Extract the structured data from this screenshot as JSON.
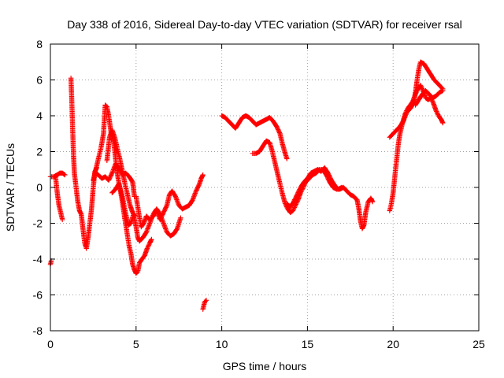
{
  "chart_data": {
    "type": "scatter",
    "title": "Day 338 of 2016, Sidereal Day-to-day VTEC variation (SDTVAR) for receiver rsal",
    "xlabel": "GPS time / hours",
    "ylabel": "SDTVAR / TECUs",
    "xlim": [
      0,
      25
    ],
    "ylim": [
      -8,
      8
    ],
    "x_ticks": [
      0,
      5,
      10,
      15,
      20,
      25
    ],
    "y_ticks": [
      -8,
      -6,
      -4,
      -2,
      0,
      2,
      4,
      6,
      8
    ],
    "x_tick_labels": [
      "0",
      "5",
      "10",
      "15",
      "20",
      "25"
    ],
    "y_tick_labels": [
      "-8",
      "-6",
      "-4",
      "-2",
      "0",
      "2",
      "4",
      "6",
      "8"
    ],
    "grid": true,
    "marker": "+",
    "series": [
      {
        "name": "SDTVAR",
        "color": "#ff0000",
        "tracks": [
          [
            [
              0.0,
              -4.3
            ],
            [
              0.05,
              -4.1
            ]
          ],
          [
            [
              0.0,
              0.6
            ],
            [
              0.2,
              0.6
            ],
            [
              0.4,
              0.7
            ],
            [
              0.55,
              0.8
            ],
            [
              0.7,
              0.8
            ],
            [
              0.85,
              0.7
            ]
          ],
          [
            [
              0.3,
              0.6
            ],
            [
              0.4,
              -0.3
            ],
            [
              0.5,
              -1.0
            ],
            [
              0.6,
              -1.4
            ],
            [
              0.7,
              -1.8
            ]
          ],
          [
            [
              1.2,
              6.1
            ],
            [
              1.25,
              4.8
            ],
            [
              1.3,
              3.2
            ],
            [
              1.35,
              1.8
            ],
            [
              1.4,
              0.8
            ],
            [
              1.5,
              0.0
            ],
            [
              1.6,
              -0.8
            ],
            [
              1.7,
              -1.3
            ],
            [
              1.8,
              -1.5
            ],
            [
              1.9,
              -2.3
            ],
            [
              2.0,
              -3.1
            ],
            [
              2.1,
              -3.4
            ],
            [
              2.2,
              -2.8
            ],
            [
              2.3,
              -2.0
            ],
            [
              2.4,
              -1.2
            ],
            [
              2.5,
              0.0
            ],
            [
              2.6,
              0.9
            ],
            [
              2.7,
              1.1
            ]
          ],
          [
            [
              2.5,
              0.4
            ],
            [
              2.65,
              1.0
            ],
            [
              2.8,
              1.6
            ],
            [
              2.95,
              2.2
            ],
            [
              3.1,
              3.0
            ],
            [
              3.2,
              4.6
            ],
            [
              3.3,
              4.5
            ],
            [
              3.4,
              4.0
            ],
            [
              3.55,
              3.0
            ],
            [
              3.7,
              2.5
            ],
            [
              3.85,
              1.2
            ],
            [
              3.95,
              0.5
            ],
            [
              4.05,
              0.0
            ],
            [
              4.2,
              -0.8
            ],
            [
              4.35,
              -1.8
            ],
            [
              4.5,
              -2.7
            ],
            [
              4.6,
              -3.3
            ],
            [
              4.7,
              -3.7
            ],
            [
              4.8,
              -4.3
            ],
            [
              4.9,
              -4.6
            ],
            [
              5.0,
              -4.8
            ],
            [
              5.1,
              -4.7
            ],
            [
              5.2,
              -4.2
            ],
            [
              5.35,
              -4.0
            ],
            [
              5.5,
              -3.8
            ],
            [
              5.65,
              -3.4
            ],
            [
              5.8,
              -3.1
            ],
            [
              5.9,
              -2.9
            ]
          ],
          [
            [
              2.6,
              0.8
            ],
            [
              2.8,
              0.7
            ],
            [
              3.0,
              0.5
            ],
            [
              3.2,
              0.6
            ],
            [
              3.4,
              0.4
            ],
            [
              3.6,
              0.8
            ],
            [
              3.8,
              1.3
            ],
            [
              4.0,
              1.1
            ],
            [
              4.2,
              0.7
            ],
            [
              4.4,
              0.8
            ],
            [
              4.6,
              0.6
            ],
            [
              4.8,
              0.3
            ],
            [
              4.9,
              -0.5
            ]
          ],
          [
            [
              3.3,
              1.5
            ],
            [
              3.45,
              2.8
            ],
            [
              3.6,
              3.2
            ],
            [
              3.75,
              2.8
            ],
            [
              3.9,
              2.2
            ],
            [
              4.05,
              1.6
            ],
            [
              4.2,
              0.9
            ],
            [
              4.35,
              0.2
            ],
            [
              4.5,
              -0.4
            ],
            [
              4.65,
              -1.0
            ],
            [
              4.8,
              -1.4
            ],
            [
              4.95,
              -1.6
            ]
          ],
          [
            [
              3.6,
              -0.3
            ],
            [
              3.8,
              -0.1
            ],
            [
              4.0,
              0.2
            ],
            [
              4.2,
              -0.5
            ],
            [
              4.4,
              -1.5
            ],
            [
              4.55,
              -2.1
            ],
            [
              4.7,
              -2.0
            ],
            [
              4.85,
              -1.5
            ],
            [
              5.0,
              -2.2
            ],
            [
              5.1,
              -2.8
            ],
            [
              5.2,
              -3.0
            ],
            [
              5.4,
              -2.8
            ],
            [
              5.6,
              -2.5
            ],
            [
              5.8,
              -2.0
            ],
            [
              6.0,
              -1.5
            ],
            [
              6.2,
              -1.2
            ],
            [
              6.4,
              -1.5
            ],
            [
              6.6,
              -2.0
            ],
            [
              6.8,
              -2.5
            ],
            [
              7.0,
              -2.7
            ],
            [
              7.2,
              -2.6
            ],
            [
              7.4,
              -2.3
            ],
            [
              7.6,
              -1.7
            ]
          ],
          [
            [
              5.0,
              -0.5
            ],
            [
              5.15,
              -1.4
            ],
            [
              5.3,
              -2.2
            ],
            [
              5.45,
              -2.0
            ],
            [
              5.6,
              -1.6
            ],
            [
              5.8,
              -1.8
            ],
            [
              6.0,
              -1.6
            ],
            [
              6.2,
              -1.3
            ],
            [
              6.4,
              -1.8
            ],
            [
              6.6,
              -1.4
            ],
            [
              6.8,
              -1.0
            ],
            [
              6.95,
              -0.4
            ],
            [
              7.1,
              -0.2
            ],
            [
              7.3,
              -0.5
            ],
            [
              7.5,
              -1.0
            ],
            [
              7.7,
              -1.2
            ],
            [
              7.9,
              -1.1
            ],
            [
              8.1,
              -1.0
            ],
            [
              8.3,
              -0.7
            ],
            [
              8.5,
              -0.2
            ],
            [
              8.7,
              0.2
            ],
            [
              8.8,
              0.5
            ],
            [
              8.9,
              0.7
            ]
          ],
          [
            [
              8.9,
              -6.8
            ],
            [
              9.0,
              -6.4
            ],
            [
              9.1,
              -6.3
            ]
          ],
          [
            [
              10.0,
              4.0
            ],
            [
              10.2,
              3.9
            ],
            [
              10.4,
              3.7
            ],
            [
              10.6,
              3.5
            ],
            [
              10.8,
              3.3
            ],
            [
              11.0,
              3.6
            ],
            [
              11.2,
              3.9
            ],
            [
              11.4,
              4.0
            ],
            [
              11.6,
              3.9
            ],
            [
              11.8,
              3.7
            ],
            [
              12.0,
              3.5
            ],
            [
              12.2,
              3.6
            ],
            [
              12.4,
              3.7
            ],
            [
              12.6,
              3.8
            ],
            [
              12.8,
              3.9
            ],
            [
              13.0,
              3.7
            ],
            [
              13.2,
              3.4
            ],
            [
              13.4,
              3.0
            ],
            [
              13.55,
              2.4
            ],
            [
              13.7,
              1.9
            ],
            [
              13.8,
              1.6
            ]
          ],
          [
            [
              11.8,
              1.9
            ],
            [
              12.0,
              1.9
            ],
            [
              12.2,
              2.0
            ],
            [
              12.4,
              2.3
            ],
            [
              12.6,
              2.6
            ],
            [
              12.8,
              2.5
            ],
            [
              12.95,
              2.0
            ],
            [
              13.1,
              1.4
            ],
            [
              13.25,
              0.8
            ],
            [
              13.4,
              0.2
            ],
            [
              13.55,
              -0.4
            ],
            [
              13.7,
              -0.9
            ],
            [
              13.85,
              -1.2
            ],
            [
              14.0,
              -1.4
            ],
            [
              14.15,
              -1.3
            ],
            [
              14.3,
              -1.0
            ],
            [
              14.45,
              -0.7
            ],
            [
              14.6,
              -0.3
            ],
            [
              14.75,
              0.0
            ],
            [
              14.9,
              0.3
            ],
            [
              15.1,
              0.5
            ],
            [
              15.3,
              0.7
            ],
            [
              15.5,
              0.8
            ],
            [
              15.7,
              1.0
            ],
            [
              15.9,
              1.0
            ],
            [
              16.1,
              0.7
            ],
            [
              16.3,
              0.3
            ],
            [
              16.5,
              0.0
            ],
            [
              16.7,
              -0.1
            ],
            [
              16.9,
              -0.1
            ],
            [
              17.1,
              0.0
            ],
            [
              17.3,
              -0.2
            ],
            [
              17.5,
              -0.4
            ],
            [
              17.7,
              -0.5
            ],
            [
              17.9,
              -0.7
            ],
            [
              18.0,
              -1.2
            ],
            [
              18.1,
              -1.9
            ],
            [
              18.2,
              -2.3
            ],
            [
              18.3,
              -2.1
            ],
            [
              18.4,
              -1.4
            ],
            [
              18.55,
              -0.8
            ],
            [
              18.7,
              -0.6
            ],
            [
              18.8,
              -0.8
            ]
          ],
          [
            [
              13.8,
              -0.9
            ],
            [
              14.0,
              -1.1
            ],
            [
              14.2,
              -0.8
            ],
            [
              14.4,
              -0.4
            ],
            [
              14.6,
              0.0
            ],
            [
              14.8,
              0.3
            ],
            [
              15.0,
              0.5
            ],
            [
              15.2,
              0.8
            ],
            [
              15.4,
              0.9
            ],
            [
              15.6,
              1.0
            ],
            [
              15.8,
              0.9
            ],
            [
              16.0,
              1.1
            ],
            [
              16.2,
              0.8
            ],
            [
              16.4,
              0.4
            ],
            [
              16.6,
              0.1
            ],
            [
              16.8,
              -0.1
            ],
            [
              17.0,
              0.0
            ]
          ],
          [
            [
              19.8,
              -1.3
            ],
            [
              19.9,
              -0.9
            ],
            [
              20.0,
              -0.3
            ],
            [
              20.1,
              0.6
            ],
            [
              20.2,
              1.5
            ],
            [
              20.3,
              2.4
            ],
            [
              20.4,
              3.0
            ],
            [
              20.55,
              3.6
            ],
            [
              20.7,
              4.1
            ],
            [
              20.85,
              4.4
            ],
            [
              21.0,
              4.6
            ],
            [
              21.15,
              4.8
            ],
            [
              21.3,
              5.2
            ],
            [
              21.45,
              5.5
            ],
            [
              21.6,
              5.7
            ],
            [
              21.75,
              5.4
            ],
            [
              21.9,
              5.0
            ],
            [
              22.05,
              4.9
            ],
            [
              22.2,
              5.0
            ],
            [
              22.35,
              4.7
            ],
            [
              22.5,
              4.3
            ],
            [
              22.65,
              4.0
            ],
            [
              22.8,
              3.8
            ],
            [
              22.9,
              3.6
            ]
          ],
          [
            [
              19.8,
              2.8
            ],
            [
              20.0,
              3.0
            ],
            [
              20.2,
              3.2
            ],
            [
              20.4,
              3.4
            ],
            [
              20.6,
              3.7
            ],
            [
              20.8,
              4.2
            ],
            [
              21.0,
              4.4
            ],
            [
              21.2,
              4.7
            ],
            [
              21.3,
              5.3
            ],
            [
              21.4,
              6.0
            ],
            [
              21.5,
              6.6
            ],
            [
              21.6,
              7.0
            ],
            [
              21.8,
              6.9
            ],
            [
              22.0,
              6.6
            ],
            [
              22.2,
              6.3
            ],
            [
              22.4,
              6.0
            ],
            [
              22.6,
              5.8
            ],
            [
              22.8,
              5.6
            ],
            [
              22.9,
              5.5
            ]
          ],
          [
            [
              21.3,
              4.6
            ],
            [
              21.5,
              4.9
            ],
            [
              21.7,
              5.2
            ],
            [
              21.9,
              5.4
            ],
            [
              22.1,
              5.2
            ],
            [
              22.3,
              5.0
            ],
            [
              22.5,
              5.1
            ],
            [
              22.7,
              5.3
            ],
            [
              22.9,
              5.4
            ]
          ]
        ]
      }
    ]
  }
}
